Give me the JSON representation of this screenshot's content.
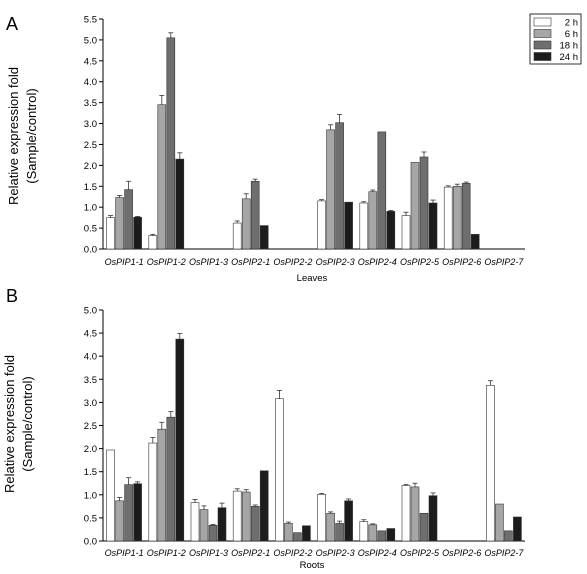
{
  "legend": [
    {
      "label": "2 h",
      "color": "#ffffff"
    },
    {
      "label": "6 h",
      "color": "#a6a6a6"
    },
    {
      "label": "18 h",
      "color": "#6e6e6e"
    },
    {
      "label": "24 h",
      "color": "#1c1c1c"
    }
  ],
  "chart_data": [
    {
      "type": "bar",
      "panel_label": "A",
      "xlabel": "Leaves",
      "ylabel_line1": "Relative expression fold",
      "ylabel_line2": "(Sample/control)",
      "ylim": [
        0,
        5.5
      ],
      "yticks": [
        "0.0",
        "0.5",
        "1.0",
        "1.5",
        "2.0",
        "2.5",
        "3.0",
        "3.5",
        "4.0",
        "4.5",
        "5.0",
        "5.5"
      ],
      "legend_position": "top-right",
      "categories": [
        {
          "prefix": "Os",
          "gene": "PIP1-1"
        },
        {
          "prefix": "Os",
          "gene": "PIP1-2"
        },
        {
          "prefix": "Os",
          "gene": "PIP1-3"
        },
        {
          "prefix": "Os",
          "gene": "PIP2-1"
        },
        {
          "prefix": "Os",
          "gene": "PIP2-2"
        },
        {
          "prefix": "Os",
          "gene": "PIP2-3"
        },
        {
          "prefix": "Os",
          "gene": "PIP2-4"
        },
        {
          "prefix": "Os",
          "gene": "PIP2-5"
        },
        {
          "prefix": "Os",
          "gene": "PIP2-6"
        },
        {
          "prefix": "Os",
          "gene": "PIP2-7"
        }
      ],
      "series": [
        {
          "name": "2 h",
          "values": [
            0.75,
            0.32,
            null,
            0.62,
            null,
            1.15,
            1.1,
            0.8,
            1.48,
            null
          ],
          "errors": [
            0.05,
            0.03,
            null,
            0.05,
            null,
            0.03,
            0.03,
            0.08,
            0.03,
            null
          ]
        },
        {
          "name": "6 h",
          "values": [
            1.23,
            3.45,
            null,
            1.2,
            null,
            2.85,
            1.37,
            2.07,
            1.5,
            null
          ],
          "errors": [
            0.05,
            0.22,
            null,
            0.12,
            null,
            0.12,
            0.04,
            0.0,
            0.05,
            null
          ]
        },
        {
          "name": "18 h",
          "values": [
            1.42,
            5.05,
            null,
            1.62,
            null,
            3.02,
            2.8,
            2.2,
            1.57,
            null
          ],
          "errors": [
            0.2,
            0.12,
            null,
            0.05,
            null,
            0.2,
            0.0,
            0.12,
            0.03,
            null
          ]
        },
        {
          "name": "24 h",
          "values": [
            0.76,
            2.15,
            null,
            0.56,
            null,
            1.12,
            0.9,
            1.1,
            0.35,
            null
          ],
          "errors": [
            0.02,
            0.15,
            null,
            0.0,
            null,
            0.0,
            0.02,
            0.07,
            0.0,
            null
          ]
        }
      ]
    },
    {
      "type": "bar",
      "panel_label": "B",
      "xlabel": "Roots",
      "ylabel_line1": "Relative expression fold",
      "ylabel_line2": "(Sample/control)",
      "ylim": [
        0,
        5.0
      ],
      "yticks": [
        "0.0",
        "0.5",
        "1.0",
        "1.5",
        "2.0",
        "2.5",
        "3.0",
        "3.5",
        "4.0",
        "4.5",
        "5.0"
      ],
      "categories": [
        {
          "prefix": "Os",
          "gene": "PIP1-1"
        },
        {
          "prefix": "Os",
          "gene": "PIP1-2"
        },
        {
          "prefix": "Os",
          "gene": "PIP1-3"
        },
        {
          "prefix": "Os",
          "gene": "PIP2-1"
        },
        {
          "prefix": "Os",
          "gene": "PIP2-2"
        },
        {
          "prefix": "Os",
          "gene": "PIP2-3"
        },
        {
          "prefix": "Os",
          "gene": "PIP2-4"
        },
        {
          "prefix": "Os",
          "gene": "PIP2-5"
        },
        {
          "prefix": "Os",
          "gene": "PIP2-6"
        },
        {
          "prefix": "Os",
          "gene": "PIP2-7"
        }
      ],
      "series": [
        {
          "name": "2 h",
          "values": [
            1.97,
            2.12,
            0.83,
            1.08,
            3.08,
            1.01,
            0.42,
            1.2,
            null,
            3.37
          ],
          "errors": [
            0.0,
            0.12,
            0.07,
            0.05,
            0.18,
            0.02,
            0.04,
            0.02,
            null,
            0.1
          ]
        },
        {
          "name": "6 h",
          "values": [
            0.87,
            2.42,
            0.68,
            1.06,
            0.38,
            0.6,
            0.35,
            1.17,
            null,
            0.8
          ],
          "errors": [
            0.07,
            0.15,
            0.08,
            0.05,
            0.03,
            0.03,
            0.02,
            0.08,
            null,
            0.0
          ]
        },
        {
          "name": "18 h",
          "values": [
            1.22,
            2.68,
            0.34,
            0.75,
            0.18,
            0.38,
            0.22,
            0.6,
            null,
            0.22
          ],
          "errors": [
            0.15,
            0.12,
            0.02,
            0.03,
            0.0,
            0.05,
            0.0,
            0.0,
            null,
            0.0
          ]
        },
        {
          "name": "24 h",
          "values": [
            1.24,
            4.37,
            0.72,
            1.52,
            0.33,
            0.87,
            0.27,
            0.98,
            null,
            0.52
          ],
          "errors": [
            0.04,
            0.12,
            0.1,
            0.0,
            0.0,
            0.04,
            0.0,
            0.06,
            null,
            0.0
          ]
        }
      ]
    }
  ]
}
